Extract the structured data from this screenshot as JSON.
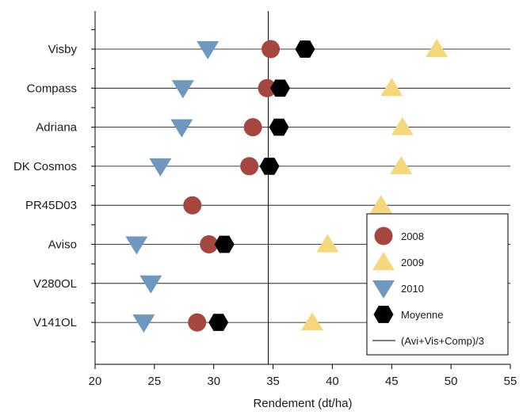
{
  "chart_data": {
    "type": "scatter",
    "title": "",
    "xlabel": "Rendement (dt/ha)",
    "ylabel": "",
    "xlim": [
      20,
      55
    ],
    "x_ticks": [
      "20",
      "25",
      "30",
      "35",
      "40",
      "45",
      "50",
      "55"
    ],
    "categories": [
      "Visby",
      "Compass",
      "Adriana",
      "DK Cosmos",
      "PR45D03",
      "Aviso",
      "V280OL",
      "V141OL"
    ],
    "series": [
      {
        "name": "2008",
        "marker": "circle",
        "color": "#a6473f",
        "values": [
          34.8,
          34.5,
          33.3,
          33.0,
          28.2,
          29.6,
          null,
          28.6
        ]
      },
      {
        "name": "2009",
        "marker": "triangle-up",
        "color": "#f5d77c",
        "values": [
          48.8,
          45.0,
          45.9,
          45.8,
          44.1,
          39.6,
          null,
          38.3
        ]
      },
      {
        "name": "2010",
        "marker": "triangle-down",
        "color": "#6f98be",
        "values": [
          29.5,
          27.4,
          27.3,
          25.5,
          null,
          23.5,
          24.7,
          24.1
        ]
      },
      {
        "name": "Moyenne",
        "marker": "hexagon",
        "color": "#000000",
        "values": [
          37.7,
          35.6,
          35.5,
          34.7,
          null,
          30.9,
          null,
          30.4
        ]
      }
    ],
    "reference_line": {
      "name": "(Avi+Vis+Comp)/3",
      "value": 34.6
    },
    "grid": {
      "horizontal": true,
      "vertical": false
    },
    "legend_position": "bottom-right"
  }
}
